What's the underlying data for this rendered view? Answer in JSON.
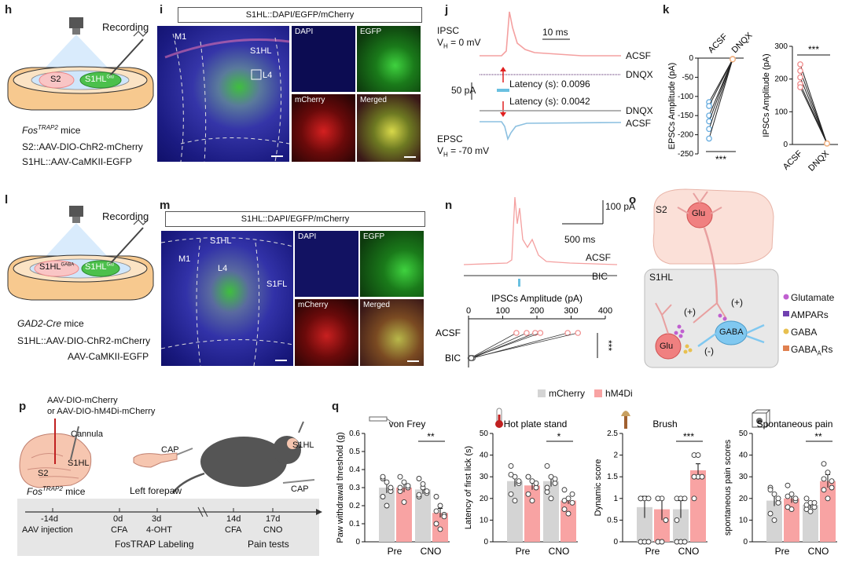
{
  "panels": {
    "h": {
      "label": "h",
      "recording": "Recording",
      "region_s2": "S2",
      "region_s1hl": "S1HL",
      "region_s1hl_sup": "Glu",
      "mouse_line": "Fos",
      "mouse_line_sup": "TRAP2",
      "mouse_line_suffix": " mice",
      "line1": "S2::AAV-DIO-ChR2-mCherry",
      "line2": "S1HL::AAV-CaMKII-EGFP"
    },
    "i": {
      "label": "i",
      "title": "S1HL::DAPI/EGFP/mCherry",
      "m1": "M1",
      "s1hl": "S1HL",
      "l4": "L4",
      "dapi": "DAPI",
      "egfp": "EGFP",
      "mcherry": "mCherry",
      "merged": "Merged"
    },
    "j": {
      "label": "j",
      "ipsc": "IPSC",
      "vh_ipsc": "V",
      "vh_ipsc_sub": "H",
      "vh_ipsc_val": " = 0 mV",
      "scale_time": "10 ms",
      "scale_amp": "50 pA",
      "latency1": "Latency (s): 0.0096",
      "latency2": "Latency (s): 0.0042",
      "trace_acsf1": "ACSF",
      "trace_dnqx1": "DNQX",
      "trace_dnqx2": "DNQX",
      "trace_acsf2": "ACSF",
      "epsc": "EPSC",
      "vh_epsc": "V",
      "vh_epsc_sub": "H",
      "vh_epsc_val": " = -70 mV"
    },
    "k": {
      "label": "k",
      "sig_left": "***",
      "sig_right": "***"
    },
    "l": {
      "label": "l",
      "recording": "Recording",
      "region_a": "S1HL",
      "region_a_sup": "GABA",
      "region_b": "S1HL",
      "region_b_sup": "Glu",
      "mouse_line": "GAD2-Cre",
      "mouse_line_suffix": " mice",
      "line1": "S1HL::AAV-DIO-ChR2-mCherry",
      "line2": "AAV-CaMKII-EGFP"
    },
    "m": {
      "label": "m",
      "title": "S1HL::DAPI/EGFP/mCherry",
      "m1": "M1",
      "s1hl": "S1HL",
      "l4": "L4",
      "s1fl": "S1FL",
      "dapi": "DAPI",
      "egfp": "EGFP",
      "mcherry": "mCherry",
      "merged": "Merged"
    },
    "n": {
      "label": "n",
      "scale_amp": "100 pA",
      "scale_time": "500 ms",
      "trace_acsf": "ACSF",
      "trace_bic": "BIC",
      "sig": "***"
    },
    "o": {
      "label": "o",
      "s2": "S2",
      "glu_top": "Glu",
      "s1hl": "S1HL",
      "plus1": "(+)",
      "plus2": "(+)",
      "minus": "(-)",
      "glu_bottom": "Glu",
      "gaba_cell": "GABA",
      "legend": [
        "Glutamate",
        "AMPARs",
        "GABA",
        "GABA"
      ],
      "legend_sub": "A",
      "legend_suffix": "Rs"
    },
    "p": {
      "label": "p",
      "virus1": "AAV-DIO-mCherry",
      "virus2": "or AAV-DIO-hM4Di-mCherry",
      "cannula": "Cannula",
      "s2": "S2",
      "s1hl": "S1HL",
      "mouse_line": "Fos",
      "mouse_line_sup": "TRAP2",
      "mouse_line_suffix": " mice",
      "cap": "CAP",
      "left_forepaw": "Left forepaw",
      "mouse_s1hl": "S1HL",
      "mouse_cap": "CAP",
      "timeline": [
        {
          "day": "-14d",
          "event": "AAV injection"
        },
        {
          "day": "0d",
          "event": "CFA"
        },
        {
          "day": "3d",
          "event": "4-OHT"
        },
        {
          "day": "14d",
          "event": "CFA"
        },
        {
          "day": "17d",
          "event": "CNO"
        }
      ],
      "fostrap": "FosTRAP Labeling",
      "pain_tests": "Pain tests"
    },
    "q": {
      "label": "q",
      "legend_a": "mCherry",
      "legend_b": "hM4Di",
      "color_a": "#d4d4d4",
      "color_b": "#f8a3a3"
    }
  },
  "chart_data": [
    {
      "id": "k-left",
      "type": "paired-line",
      "ylabel": "EPSCs Amplitude (pA)",
      "categories": [
        "ACSF",
        "DNQX"
      ],
      "ylim": [
        -250,
        0
      ],
      "yticks": [
        0,
        -50,
        -100,
        -150,
        -200,
        -250
      ],
      "pairs": [
        [
          -115,
          -3
        ],
        [
          -125,
          -3
        ],
        [
          -150,
          -3
        ],
        [
          -165,
          -2
        ],
        [
          -185,
          -3
        ],
        [
          -210,
          -3
        ]
      ],
      "significance": "***"
    },
    {
      "id": "k-right",
      "type": "paired-line",
      "ylabel": "IPSCs Amplitude (pA)",
      "categories": [
        "ACSF",
        "DNQX"
      ],
      "ylim": [
        0,
        300
      ],
      "yticks": [
        0,
        100,
        200,
        300
      ],
      "pairs": [
        [
          245,
          3
        ],
        [
          225,
          3
        ],
        [
          205,
          3
        ],
        [
          185,
          3
        ],
        [
          175,
          3
        ]
      ],
      "significance": "***"
    },
    {
      "id": "n",
      "type": "paired-line-horizontal",
      "title": "IPSCs Amplitude (pA)",
      "categories": [
        "ACSF",
        "BIC"
      ],
      "xlim": [
        0,
        400
      ],
      "xticks": [
        0,
        100,
        200,
        300,
        400
      ],
      "pairs": [
        [
          140,
          6
        ],
        [
          170,
          8
        ],
        [
          195,
          10
        ],
        [
          210,
          6
        ],
        [
          290,
          12
        ],
        [
          320,
          8
        ]
      ],
      "significance": "***"
    },
    {
      "id": "q-vonfrey",
      "type": "bar",
      "title": "von Frey",
      "ylabel": "Paw withdrawal threshold (g)",
      "ylim": [
        0,
        0.6
      ],
      "yticks": [
        0,
        0.1,
        0.2,
        0.3,
        0.4,
        0.5,
        0.6
      ],
      "categories": [
        "Pre",
        "CNO"
      ],
      "series": [
        {
          "name": "mCherry",
          "values": [
            0.3,
            0.29
          ],
          "sem": [
            0.03,
            0.025
          ],
          "points": [
            [
              0.35,
              0.33,
              0.28,
              0.25,
              0.2,
              0.3,
              0.36
            ],
            [
              0.35,
              0.3,
              0.27,
              0.25,
              0.32,
              0.28,
              0.26
            ]
          ]
        },
        {
          "name": "hM4Di",
          "values": [
            0.3,
            0.16
          ],
          "sem": [
            0.025,
            0.025
          ],
          "points": [
            [
              0.36,
              0.33,
              0.3,
              0.28,
              0.22,
              0.31,
              0.3
            ],
            [
              0.25,
              0.2,
              0.15,
              0.1,
              0.07,
              0.14,
              0.17
            ]
          ]
        }
      ],
      "significance": "**"
    },
    {
      "id": "q-hotplate",
      "type": "bar",
      "title": "Hot plate stand",
      "ylabel": "Latency of first lick (s)",
      "ylim": [
        0,
        50
      ],
      "yticks": [
        0,
        10,
        20,
        30,
        40,
        50
      ],
      "categories": [
        "Pre",
        "CNO"
      ],
      "series": [
        {
          "name": "mCherry",
          "values": [
            28,
            28
          ],
          "sem": [
            2.5,
            2.5
          ],
          "points": [
            [
              35,
              30,
              27,
              22,
              19,
              28,
              31
            ],
            [
              35,
              30,
              27,
              23,
              20,
              29,
              25
            ]
          ]
        },
        {
          "name": "hM4Di",
          "values": [
            26,
            19
          ],
          "sem": [
            2,
            1.5
          ],
          "points": [
            [
              30,
              28,
              25,
              22,
              19,
              27,
              30
            ],
            [
              24,
              20,
              18,
              15,
              13,
              22,
              19
            ]
          ]
        }
      ],
      "significance": "*"
    },
    {
      "id": "q-brush",
      "type": "bar",
      "title": "Brush",
      "ylabel": "Dynamic score",
      "ylim": [
        0,
        2.5
      ],
      "yticks": [
        0,
        0.5,
        1.0,
        1.5,
        2.0,
        2.5
      ],
      "categories": [
        "Pre",
        "CNO"
      ],
      "series": [
        {
          "name": "mCherry",
          "values": [
            0.8,
            0.75
          ],
          "sem": [
            0.25,
            0.2
          ],
          "points": [
            [
              1.0,
              1.0,
              1.0,
              0,
              0,
              0,
              1.0
            ],
            [
              1.0,
              1.0,
              1.0,
              0,
              0,
              0,
              0.5
            ]
          ]
        },
        {
          "name": "hM4Di",
          "values": [
            0.75,
            1.65
          ],
          "sem": [
            0.25,
            0.15
          ],
          "points": [
            [
              1.0,
              1.0,
              0.5,
              0,
              0,
              0.5,
              1.0
            ],
            [
              2.0,
              2.0,
              1.5,
              1.0,
              1.5,
              1.5,
              1.5
            ]
          ]
        }
      ],
      "significance": "***"
    },
    {
      "id": "q-spontaneous",
      "type": "bar",
      "title": "Spontaneous pain",
      "ylabel": "spontaneous pain scores",
      "ylim": [
        0,
        50
      ],
      "yticks": [
        0,
        10,
        20,
        30,
        40,
        50
      ],
      "categories": [
        "Pre",
        "CNO"
      ],
      "series": [
        {
          "name": "mCherry",
          "values": [
            19,
            17
          ],
          "sem": [
            2.5,
            1.5
          ],
          "points": [
            [
              25,
              22,
              18,
              13,
              10,
              20,
              24
            ],
            [
              20,
              18,
              16,
              15,
              14,
              18,
              17
            ]
          ]
        },
        {
          "name": "hM4Di",
          "values": [
            20,
            28
          ],
          "sem": [
            2,
            3
          ],
          "points": [
            [
              26,
              22,
              19,
              16,
              15,
              20,
              21
            ],
            [
              36,
              32,
              28,
              24,
              20,
              25,
              29
            ]
          ]
        }
      ],
      "significance": "**"
    }
  ]
}
